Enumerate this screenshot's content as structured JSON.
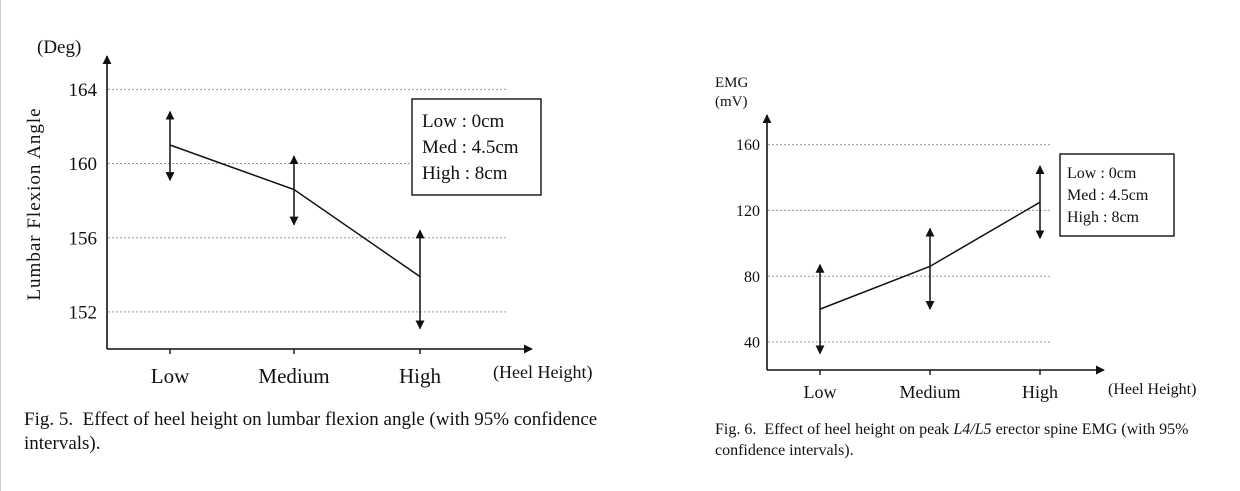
{
  "figures": [
    {
      "caption": {
        "label": "Fig. 5.",
        "text": "Effect of heel height on lumbar flexion angle (with 95% confidence intervals)."
      }
    },
    {
      "caption": {
        "label": "Fig. 6.",
        "text_before": "Effect of heel height on peak ",
        "math": "L4/L5",
        "text_after": " erector spine EMG (with 95% confidence intervals)."
      }
    }
  ],
  "chart_data": [
    {
      "type": "line",
      "categories": [
        "Low",
        "Medium",
        "High"
      ],
      "values": [
        161.0,
        158.6,
        153.9
      ],
      "error_upper": [
        162.8,
        160.4,
        156.4
      ],
      "error_lower": [
        159.1,
        156.7,
        151.1
      ],
      "ylabel": "Lumbar Flexion Angle",
      "yunit": "(Deg)",
      "xlabel": "(Heel Height)",
      "yticks": [
        152,
        156,
        160,
        164
      ],
      "ylim": [
        150,
        165.5
      ],
      "grid": "horizontal dotted at ticks",
      "legend_position": "top-right",
      "legend": [
        "Low : 0cm",
        "Med : 4.5cm",
        "High : 8cm"
      ]
    },
    {
      "type": "line",
      "categories": [
        "Low",
        "Medium",
        "High"
      ],
      "values": [
        60,
        86,
        125
      ],
      "error_upper": [
        87,
        109,
        147
      ],
      "error_lower": [
        33,
        60,
        103
      ],
      "ylabel": "EMG",
      "yunit": "(mV)",
      "xlabel": "(Heel Height)",
      "yticks": [
        40,
        80,
        120,
        160
      ],
      "ylim": [
        23,
        178
      ],
      "grid": "horizontal dotted at ticks",
      "legend_position": "top-right",
      "legend": [
        "Low : 0cm",
        "Med : 4.5cm",
        "High : 8cm"
      ]
    }
  ]
}
